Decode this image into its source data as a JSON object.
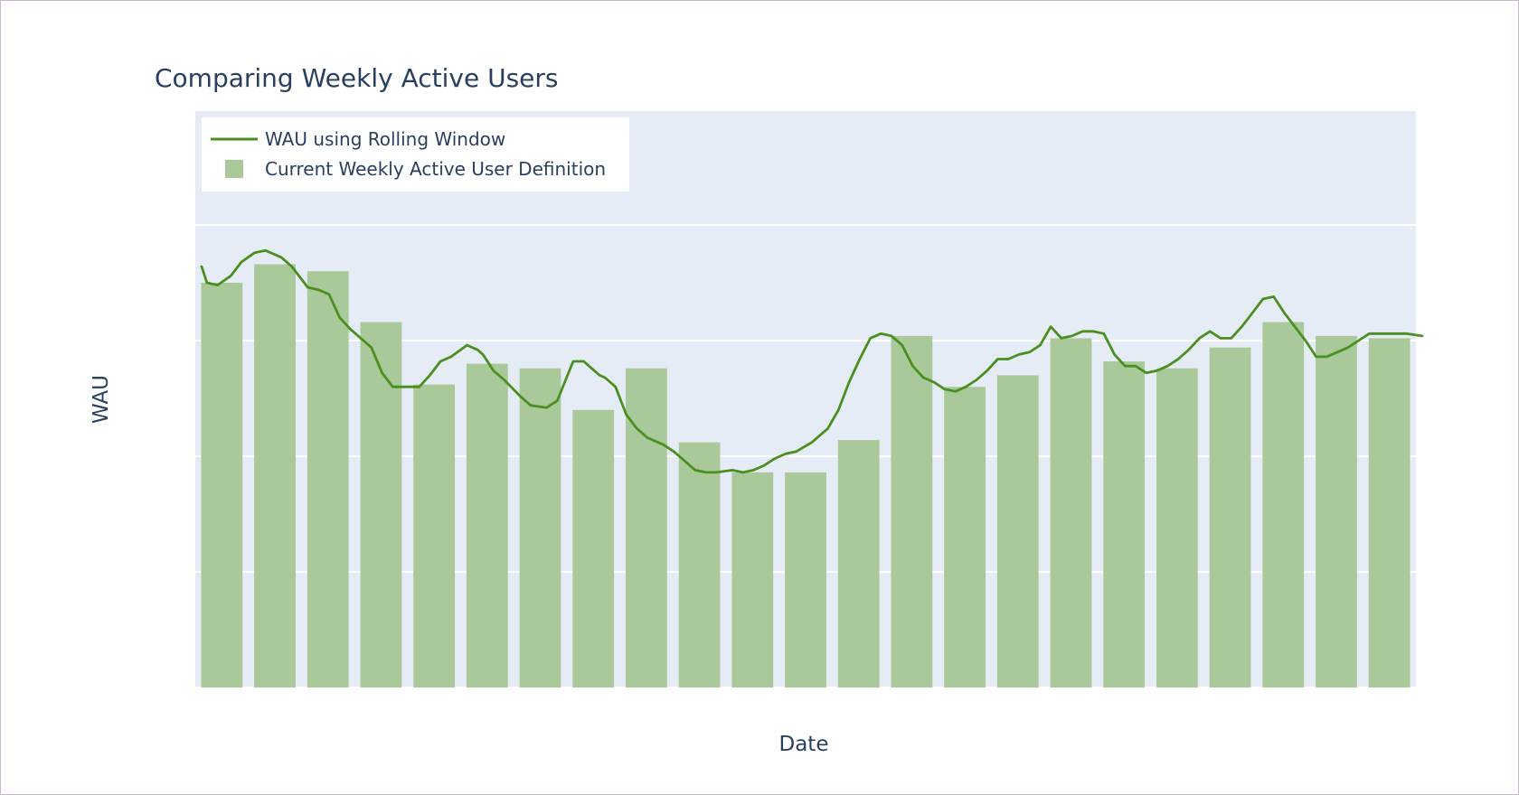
{
  "chart_data": {
    "type": "bar",
    "title": "Comparing Weekly Active Users",
    "xlabel": "Date",
    "ylabel": "WAU",
    "ylim": [
      0,
      100
    ],
    "grid": true,
    "legend_position": "top-left",
    "colors": {
      "plot_background": "#e5ecf6",
      "grid": "#ffffff",
      "bar": "#a9c99a",
      "line": "#4a8f1f",
      "text": "#2a3f5f"
    },
    "bars": {
      "name": "Current Weekly Active User Definition",
      "values": [
        87.5,
        91.5,
        90,
        79,
        65.5,
        70,
        69,
        60,
        69,
        53,
        46.5,
        46.5,
        53.5,
        76,
        65,
        67.5,
        75.5,
        70.5,
        69,
        73.5,
        79,
        76,
        75.5
      ]
    },
    "line": {
      "name": "WAU using Rolling Window",
      "x": [
        0,
        0.1,
        0.3,
        0.55,
        0.75,
        1,
        1.2,
        1.5,
        1.7,
        2,
        2.2,
        2.4,
        2.6,
        2.8,
        3,
        3.2,
        3.4,
        3.6,
        3.9,
        4.1,
        4.3,
        4.5,
        4.7,
        5,
        5.2,
        5.3,
        5.5,
        5.7,
        6,
        6.2,
        6.5,
        6.7,
        7,
        7.2,
        7.4,
        7.5,
        7.6,
        7.8,
        8,
        8.2,
        8.4,
        8.7,
        8.9,
        9.1,
        9.3,
        9.5,
        9.7,
        10,
        10.2,
        10.4,
        10.6,
        10.8,
        11,
        11.2,
        11.5,
        11.8,
        12,
        12.2,
        12.4,
        12.6,
        12.8,
        13,
        13.2,
        13.4,
        13.6,
        13.8,
        14,
        14.2,
        14.4,
        14.6,
        14.8,
        15,
        15.2,
        15.4,
        15.6,
        15.8,
        16,
        16.2,
        16.4,
        16.6,
        16.8,
        17,
        17.2,
        17.4,
        17.6,
        17.8,
        18,
        18.2,
        18.4,
        18.6,
        18.8,
        19,
        19.2,
        19.4,
        19.6,
        19.8,
        20,
        20.2,
        20.4,
        20.6,
        20.8,
        21,
        21.2,
        21.4,
        21.6,
        21.8,
        22,
        22.2,
        22.5,
        22.7,
        23
      ],
      "values": [
        91,
        87.5,
        87,
        89,
        92,
        94,
        94.5,
        93,
        91,
        86.5,
        86,
        85,
        80,
        77.5,
        75.5,
        73.5,
        68,
        65,
        65,
        65,
        67.5,
        70.5,
        71.5,
        74,
        73,
        72,
        68.5,
        66.5,
        63,
        61,
        60.5,
        62,
        70.5,
        70.5,
        68.5,
        67.5,
        67,
        65,
        59,
        56,
        54,
        52.5,
        51,
        49,
        47,
        46.5,
        46.5,
        47,
        46.5,
        47,
        48,
        49.5,
        50.5,
        51,
        53,
        56,
        60,
        66,
        71,
        75.5,
        76.5,
        76,
        74,
        69.5,
        67,
        66,
        64.5,
        64,
        65,
        66.5,
        68.5,
        71,
        71,
        72,
        72.5,
        74,
        78,
        75.5,
        76,
        77,
        77,
        76.5,
        72,
        69.5,
        69.5,
        68,
        68.5,
        69.5,
        71,
        73,
        75.5,
        77,
        75.5,
        75.5,
        78,
        81,
        84,
        84.5,
        81,
        78,
        75,
        71.5,
        71.5,
        72.5,
        73.5,
        75,
        76.5,
        76.5,
        76.5,
        76.5,
        76
      ]
    }
  }
}
